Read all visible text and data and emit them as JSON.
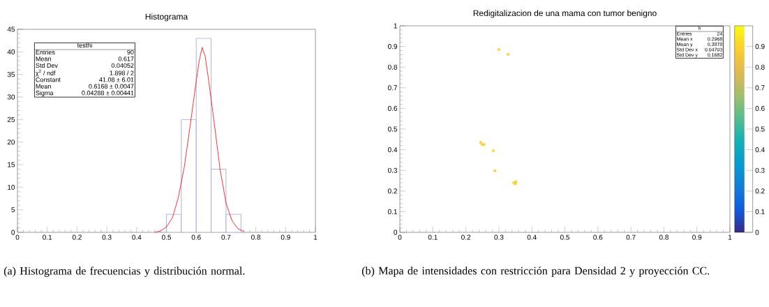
{
  "chart_data": [
    {
      "type": "histogram",
      "title": "Histograma",
      "bins": [
        0.5,
        0.55,
        0.6,
        0.65,
        0.7,
        0.75
      ],
      "series": [
        {
          "type": "histogram",
          "color": "#9b9be0",
          "values": [
            4,
            25,
            43,
            14,
            4
          ]
        },
        {
          "type": "line",
          "color": "#ff0000",
          "x": [
            0.46,
            0.48,
            0.5,
            0.52,
            0.54,
            0.56,
            0.58,
            0.6,
            0.61,
            0.62,
            0.63,
            0.64,
            0.66,
            0.68,
            0.7,
            0.72,
            0.74,
            0.76
          ],
          "values": [
            0,
            0.3,
            1.2,
            3.2,
            7.7,
            14.5,
            23.8,
            33.5,
            38,
            41,
            39,
            34.5,
            24.5,
            14,
            6.5,
            2.6,
            0.8,
            0.2
          ]
        }
      ],
      "xlim": [
        0,
        1
      ],
      "ylim": [
        0,
        45
      ],
      "xticks": [
        0,
        0.1,
        0.2,
        0.3,
        0.4,
        0.5,
        0.6,
        0.7,
        0.8,
        0.9,
        1
      ],
      "yticks": [
        0,
        5,
        10,
        15,
        20,
        25,
        30,
        35,
        40,
        45
      ],
      "annotations": [
        "testhi",
        "Entries",
        "90",
        "Mean",
        "0.617",
        "Std Dev",
        "0.04052",
        "χ$^{2}$ / ndf",
        "1.898 / 2",
        "Constant",
        "41.08 ± 6.01",
        "Mean",
        "0.6168 ± 0.0047",
        "Sigma",
        "0.04288 ± 0.00441",
        "(a) Histograma de frecuencias y distribución normal."
      ]
    },
    {
      "type": "scatter",
      "title": "Redigitalizacion de una mama con tumor benigno",
      "marker": "square",
      "x": [
        0.3,
        0.328,
        0.245,
        0.25,
        0.255,
        0.283,
        0.288,
        0.345,
        0.352,
        0.35
      ],
      "values": [
        0.885,
        0.862,
        0.435,
        0.425,
        0.425,
        0.395,
        0.298,
        0.24,
        0.245,
        0.235
      ],
      "cvalues": [
        0.9,
        0.9,
        0.9,
        0.9,
        0.9,
        0.9,
        0.9,
        0.9,
        0.9,
        0.9
      ],
      "clim": [
        0,
        1
      ],
      "cticks": [
        0,
        0.1,
        0.2,
        0.3,
        0.4,
        0.5,
        0.6,
        0.7,
        0.8,
        0.9
      ],
      "xlim": [
        0,
        1
      ],
      "ylim": [
        0,
        1
      ],
      "xticks": [
        0,
        0.1,
        0.2,
        0.3,
        0.4,
        0.5,
        0.6,
        0.7,
        0.8,
        0.9,
        1
      ],
      "yticks": [
        0,
        0.1,
        0.2,
        0.3,
        0.4,
        0.5,
        0.6,
        0.7,
        0.8,
        0.9,
        1
      ],
      "annotations": [
        "h",
        "Entries",
        "24",
        "Mean x",
        "0.2968",
        "Mean y",
        "0.3878",
        "Std Dev x",
        "0.04703",
        "Std Dev y",
        "0.1682",
        "(b) Mapa de intensidades con restricción para Densidad 2 y proyección CC."
      ]
    }
  ]
}
